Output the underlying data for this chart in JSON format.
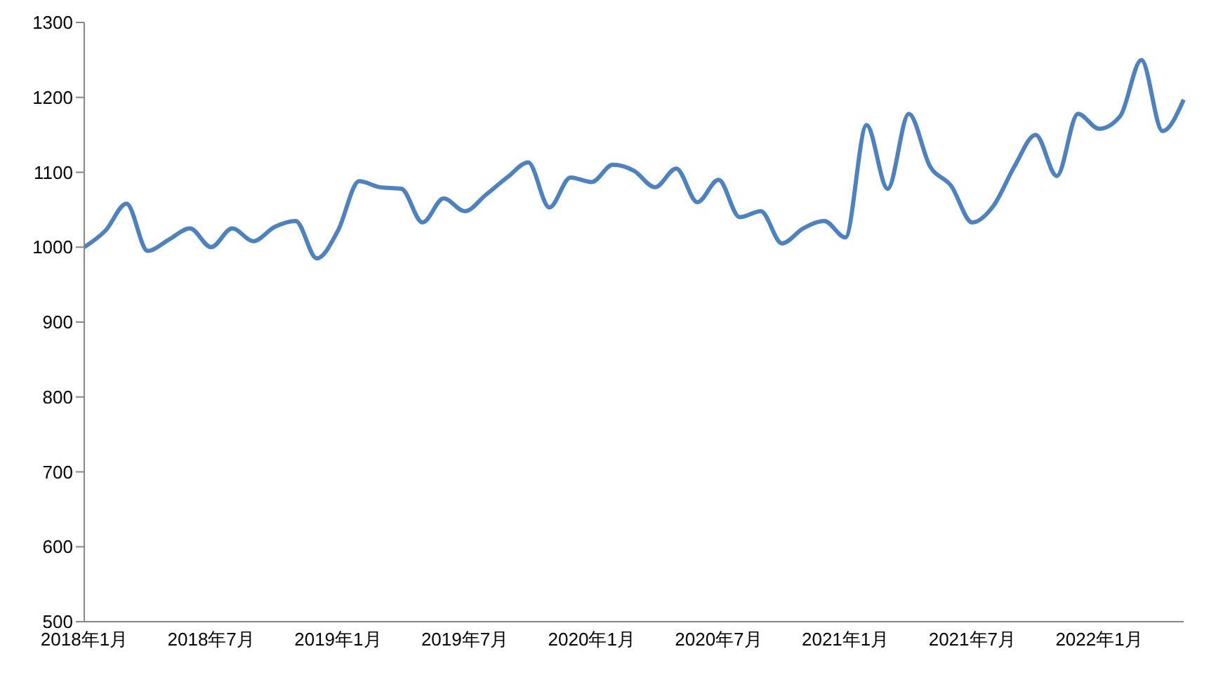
{
  "chart_data": {
    "type": "line",
    "categories": [
      "2018年1月",
      null,
      null,
      null,
      null,
      null,
      "2018年7月",
      null,
      null,
      null,
      null,
      null,
      "2019年1月",
      null,
      null,
      null,
      null,
      null,
      "2019年7月",
      null,
      null,
      null,
      null,
      null,
      "2020年1月",
      null,
      null,
      null,
      null,
      null,
      "2020年7月",
      null,
      null,
      null,
      null,
      null,
      "2021年1月",
      null,
      null,
      null,
      null,
      null,
      "2021年7月",
      null,
      null,
      null,
      null,
      null,
      "2022年1月",
      null,
      null,
      null,
      null
    ],
    "series": [
      {
        "color": "#4f81bd",
        "values": [
          1000,
          1022,
          1058,
          995,
          1010,
          1025,
          1000,
          1025,
          1008,
          1027,
          1035,
          985,
          1022,
          1088,
          1080,
          1078,
          1033,
          1065,
          1048,
          1070,
          1093,
          1113,
          1053,
          1093,
          1087,
          1110,
          1102,
          1080,
          1105,
          1060,
          1090,
          1040,
          1048,
          1005,
          1025,
          1035,
          1013,
          1163,
          1078,
          1178,
          1108,
          1082,
          1033,
          1055,
          1108,
          1150,
          1095,
          1178,
          1158,
          1175,
          1250,
          1155,
          1197
        ]
      }
    ],
    "ylim": [
      500,
      1300
    ],
    "yticks": [
      500,
      600,
      700,
      800,
      900,
      1000,
      1100,
      1200,
      1300
    ],
    "marker": "none",
    "line_style": "solid"
  }
}
